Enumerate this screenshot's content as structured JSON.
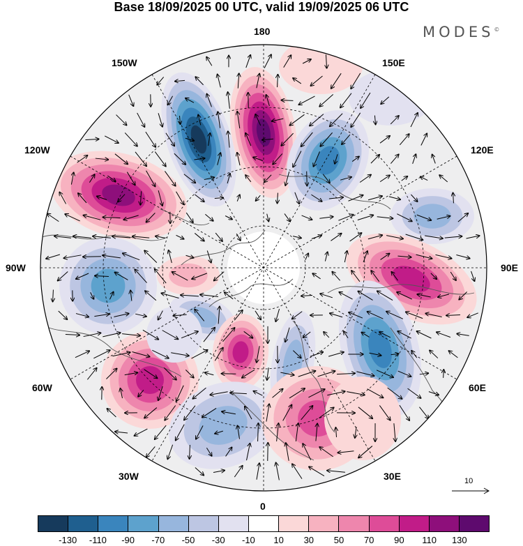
{
  "title": "Base 18/09/2025 00 UTC, valid 19/09/2025 06 UTC",
  "brand": "MODES",
  "brand_mark": "©",
  "longitudes": {
    "lon_180": "180",
    "lon_150w": "150W",
    "lon_150e": "150E",
    "lon_120w": "120W",
    "lon_120e": "120E",
    "lon_90w": "90W",
    "lon_90e": "90E",
    "lon_60w": "60W",
    "lon_60e": "60E",
    "lon_30w": "30W",
    "lon_30e": "30E",
    "lon_0": "0"
  },
  "reference_vector": "10",
  "colorbar": {
    "colors": [
      "#163a5c",
      "#1f5f8f",
      "#3a85bd",
      "#5da2cd",
      "#97b6dd",
      "#bdc6e3",
      "#e2e1f0",
      "#ffffff",
      "#fbd8d8",
      "#f7b2c0",
      "#ee86ad",
      "#de4c98",
      "#c11c88",
      "#8e0f7b",
      "#5e0a6e"
    ],
    "ticks": [
      "-130",
      "-110",
      "-90",
      "-70",
      "-50",
      "-30",
      "-10",
      "10",
      "30",
      "50",
      "70",
      "90",
      "110",
      "130"
    ]
  }
}
